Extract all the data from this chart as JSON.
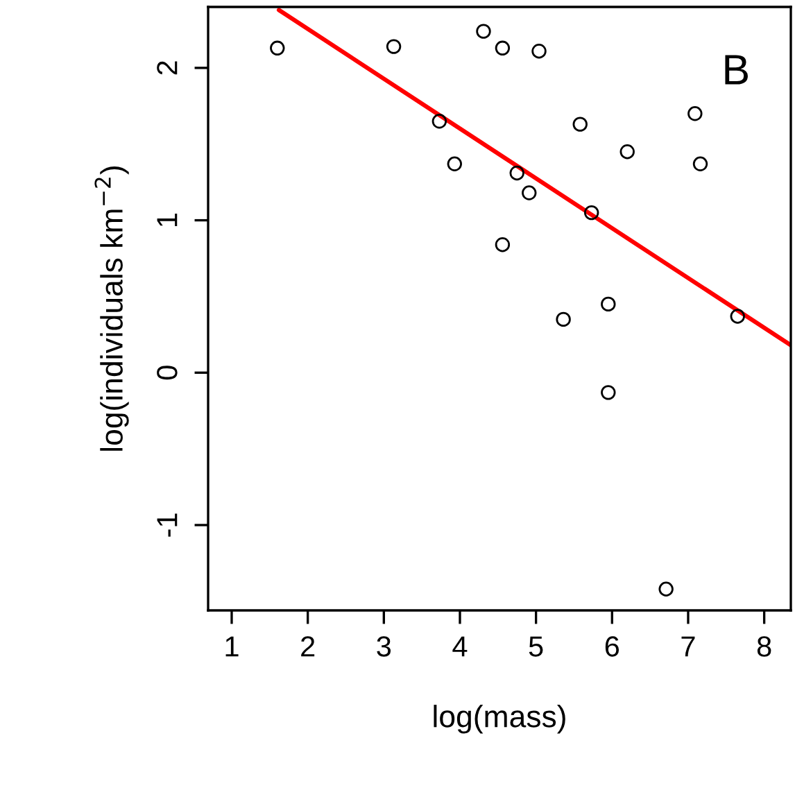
{
  "chart_data": {
    "type": "scatter",
    "xlabel": "log(mass)",
    "ylabel": "log(individuals km$^{−2}$)",
    "annotations": [
      "B"
    ],
    "xlim": [
      0.69,
      8.35
    ],
    "ylim": [
      -1.56,
      2.4
    ],
    "xticks": [
      1,
      2,
      3,
      4,
      5,
      6,
      7,
      8
    ],
    "yticks": [
      -1,
      0,
      1,
      2
    ],
    "grid": false,
    "legend": false,
    "series": [
      {
        "marker": "circle",
        "color": "#000000",
        "x": [
          1.6,
          3.13,
          3.73,
          3.93,
          4.31,
          4.56,
          5.04,
          4.75,
          4.91,
          4.56,
          5.36,
          5.58,
          5.73,
          6.2,
          5.95,
          5.95,
          7.09,
          7.16,
          7.65,
          6.71
        ],
        "values": [
          2.13,
          2.14,
          1.65,
          1.37,
          2.24,
          2.13,
          2.11,
          1.31,
          1.18,
          0.84,
          0.35,
          1.63,
          1.05,
          1.45,
          0.45,
          -0.13,
          1.7,
          1.37,
          0.37,
          -1.42
        ]
      },
      {
        "type": "line",
        "marker": "none",
        "color": "#ff0000",
        "x": [
          1.62,
          8.35
        ],
        "values": [
          2.38,
          0.18
        ]
      }
    ]
  }
}
